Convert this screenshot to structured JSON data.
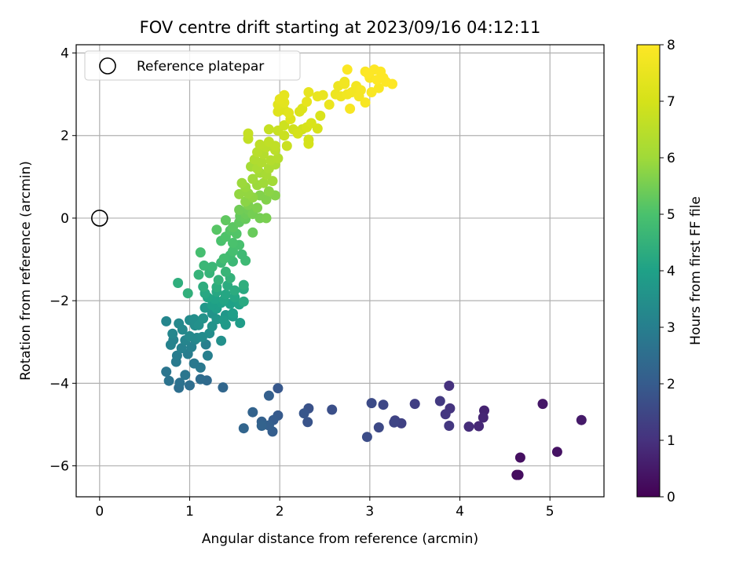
{
  "chart_data": {
    "type": "scatter",
    "title": "FOV centre drift starting at 2023/09/16 04:12:11",
    "xlabel": "Angular distance from reference (arcmin)",
    "ylabel": "Rotation from reference (arcmin)",
    "xlim": [
      -0.26,
      5.6
    ],
    "ylim": [
      -6.75,
      4.2
    ],
    "x_ticks": [
      0,
      1,
      2,
      3,
      4,
      5
    ],
    "y_ticks": [
      -6,
      -4,
      -2,
      0,
      2,
      4
    ],
    "grid": true,
    "legend": {
      "placement": "top-left",
      "entries": [
        "Reference platepar"
      ]
    },
    "reference_point": {
      "x": 0,
      "y": 0
    },
    "colorbar": {
      "label": "Hours from first FF file",
      "range": [
        0,
        8
      ],
      "ticks": [
        0,
        1,
        2,
        3,
        4,
        5,
        6,
        7,
        8
      ],
      "colormap": "viridis"
    },
    "series": [
      {
        "points": [
          [
            4.63,
            -6.22,
            0.2
          ],
          [
            4.65,
            -6.22,
            0.25
          ],
          [
            4.67,
            -5.8,
            0.3
          ],
          [
            5.08,
            -5.66,
            0.35
          ],
          [
            4.92,
            -4.5,
            0.45
          ],
          [
            5.35,
            -4.89,
            0.5
          ],
          [
            4.27,
            -4.66,
            0.7
          ],
          [
            4.26,
            -4.83,
            0.75
          ],
          [
            4.21,
            -5.04,
            0.8
          ],
          [
            4.1,
            -5.05,
            0.9
          ],
          [
            3.88,
            -4.06,
            1.0
          ],
          [
            3.89,
            -4.61,
            1.05
          ],
          [
            3.84,
            -4.75,
            1.1
          ],
          [
            3.88,
            -5.03,
            1.15
          ],
          [
            3.78,
            -4.43,
            1.2
          ],
          [
            3.5,
            -4.5,
            1.3
          ],
          [
            3.35,
            -4.97,
            1.35
          ],
          [
            3.28,
            -4.9,
            1.4
          ],
          [
            3.27,
            -4.95,
            1.45
          ],
          [
            3.15,
            -4.52,
            1.5
          ],
          [
            3.1,
            -5.07,
            1.55
          ],
          [
            3.02,
            -4.48,
            1.6
          ],
          [
            2.97,
            -5.3,
            1.65
          ],
          [
            2.58,
            -4.64,
            1.7
          ],
          [
            2.32,
            -4.61,
            1.75
          ],
          [
            2.31,
            -4.94,
            1.8
          ],
          [
            2.27,
            -4.73,
            1.85
          ],
          [
            1.98,
            -4.12,
            1.9
          ],
          [
            1.98,
            -4.78,
            1.95
          ],
          [
            1.93,
            -4.89,
            2.0
          ],
          [
            1.92,
            -5.17,
            2.05
          ],
          [
            1.88,
            -5.02,
            2.1
          ],
          [
            1.88,
            -4.3,
            2.1
          ],
          [
            1.8,
            -4.93,
            2.15
          ],
          [
            1.8,
            -5.03,
            2.2
          ],
          [
            1.7,
            -4.7,
            2.2
          ],
          [
            1.6,
            -5.09,
            2.25
          ],
          [
            1.37,
            -4.1,
            2.3
          ],
          [
            1.19,
            -3.93,
            2.4
          ],
          [
            1.12,
            -3.9,
            2.45
          ],
          [
            1.0,
            -4.05,
            2.5
          ],
          [
            0.88,
            -4.11,
            2.55
          ],
          [
            0.89,
            -3.99,
            2.6
          ],
          [
            0.77,
            -3.94,
            2.65
          ],
          [
            0.74,
            -3.72,
            2.7
          ],
          [
            0.95,
            -3.8,
            2.75
          ],
          [
            1.12,
            -3.62,
            2.8
          ],
          [
            1.05,
            -3.52,
            2.8
          ],
          [
            0.85,
            -3.48,
            2.85
          ],
          [
            0.86,
            -3.33,
            2.9
          ],
          [
            0.98,
            -3.29,
            2.95
          ],
          [
            1.2,
            -3.33,
            3.0
          ],
          [
            1.18,
            -3.06,
            3.0
          ],
          [
            1.02,
            -3.12,
            3.05
          ],
          [
            0.91,
            -3.15,
            3.05
          ],
          [
            0.79,
            -3.07,
            3.1
          ],
          [
            0.82,
            -2.95,
            3.1
          ],
          [
            0.95,
            -2.96,
            3.15
          ],
          [
            1.06,
            -2.94,
            3.15
          ],
          [
            0.81,
            -2.8,
            3.2
          ],
          [
            0.74,
            -2.5,
            3.2
          ],
          [
            0.88,
            -2.55,
            3.25
          ],
          [
            0.92,
            -2.7,
            3.25
          ],
          [
            1.0,
            -2.86,
            3.3
          ],
          [
            1.08,
            -2.9,
            3.3
          ],
          [
            1.14,
            -2.88,
            3.35
          ],
          [
            1.0,
            -2.47,
            3.35
          ],
          [
            1.06,
            -2.6,
            3.4
          ],
          [
            1.22,
            -2.79,
            3.4
          ],
          [
            1.05,
            -2.45,
            3.45
          ],
          [
            1.1,
            -2.59,
            3.5
          ],
          [
            1.35,
            -2.97,
            3.5
          ],
          [
            1.15,
            -2.43,
            3.55
          ],
          [
            1.25,
            -2.31,
            3.6
          ],
          [
            1.25,
            -2.62,
            3.6
          ],
          [
            1.3,
            -2.45,
            3.65
          ],
          [
            1.17,
            -2.17,
            3.7
          ],
          [
            1.4,
            -2.35,
            3.7
          ],
          [
            1.4,
            -2.58,
            3.75
          ],
          [
            1.38,
            -2.48,
            3.8
          ],
          [
            1.48,
            -2.38,
            3.8
          ],
          [
            1.56,
            -2.54,
            3.85
          ],
          [
            1.48,
            -2.31,
            3.9
          ],
          [
            1.3,
            -2.19,
            3.9
          ],
          [
            1.25,
            -2.11,
            3.95
          ],
          [
            1.35,
            -2.05,
            4.0
          ],
          [
            1.45,
            -2.08,
            4.0
          ],
          [
            1.55,
            -2.09,
            4.05
          ],
          [
            1.28,
            -1.96,
            4.05
          ],
          [
            1.38,
            -1.98,
            4.1
          ],
          [
            1.2,
            -1.92,
            4.1
          ],
          [
            1.4,
            -1.85,
            4.15
          ],
          [
            1.5,
            -1.92,
            4.15
          ],
          [
            1.17,
            -1.82,
            4.2
          ],
          [
            1.3,
            -1.78,
            4.2
          ],
          [
            1.6,
            -2.02,
            4.25
          ],
          [
            1.6,
            -1.72,
            4.25
          ],
          [
            1.5,
            -1.75,
            4.3
          ],
          [
            1.42,
            -1.63,
            4.3
          ],
          [
            1.3,
            -1.67,
            4.35
          ],
          [
            1.15,
            -1.66,
            4.35
          ],
          [
            1.6,
            -1.62,
            4.4
          ],
          [
            0.87,
            -1.57,
            4.4
          ],
          [
            0.98,
            -1.82,
            4.45
          ],
          [
            1.32,
            -1.5,
            4.5
          ],
          [
            1.45,
            -1.45,
            4.5
          ],
          [
            1.22,
            -1.33,
            4.55
          ],
          [
            1.1,
            -1.37,
            4.55
          ],
          [
            1.4,
            -1.3,
            4.6
          ],
          [
            1.25,
            -1.18,
            4.65
          ],
          [
            1.16,
            -1.15,
            4.65
          ],
          [
            1.35,
            -1.08,
            4.7
          ],
          [
            1.48,
            -1.05,
            4.7
          ],
          [
            1.62,
            -1.03,
            4.75
          ],
          [
            1.58,
            -0.88,
            4.75
          ],
          [
            1.45,
            -0.9,
            4.8
          ],
          [
            1.38,
            -0.98,
            4.85
          ],
          [
            1.12,
            -0.83,
            4.9
          ],
          [
            1.48,
            -0.8,
            4.9
          ],
          [
            1.55,
            -0.65,
            4.95
          ],
          [
            1.48,
            -0.6,
            5.0
          ],
          [
            1.35,
            -0.55,
            5.0
          ],
          [
            1.4,
            -0.45,
            5.05
          ],
          [
            1.52,
            -0.38,
            5.1
          ],
          [
            1.45,
            -0.3,
            5.1
          ],
          [
            1.3,
            -0.28,
            5.15
          ],
          [
            1.48,
            -0.22,
            5.2
          ],
          [
            1.55,
            -0.1,
            5.25
          ],
          [
            1.4,
            -0.05,
            5.25
          ],
          [
            1.56,
            0.05,
            5.3
          ],
          [
            1.62,
            -0.02,
            5.35
          ],
          [
            1.7,
            -0.35,
            5.35
          ],
          [
            1.62,
            0.1,
            5.4
          ],
          [
            1.55,
            0.2,
            5.45
          ],
          [
            1.65,
            0.2,
            5.45
          ],
          [
            1.7,
            0.1,
            5.5
          ],
          [
            1.78,
            0.0,
            5.5
          ],
          [
            1.85,
            0.0,
            5.55
          ],
          [
            1.65,
            0.32,
            5.6
          ],
          [
            1.75,
            0.25,
            5.6
          ],
          [
            1.85,
            0.45,
            5.65
          ],
          [
            1.78,
            0.55,
            5.65
          ],
          [
            1.95,
            0.55,
            5.7
          ],
          [
            1.88,
            0.65,
            5.75
          ],
          [
            1.62,
            0.4,
            5.75
          ],
          [
            1.7,
            0.5,
            5.8
          ],
          [
            1.65,
            0.6,
            5.85
          ],
          [
            1.55,
            0.58,
            5.85
          ],
          [
            1.62,
            0.75,
            5.9
          ],
          [
            1.58,
            0.85,
            5.95
          ],
          [
            1.75,
            0.8,
            5.95
          ],
          [
            1.82,
            0.85,
            6.0
          ],
          [
            1.7,
            0.95,
            6.0
          ],
          [
            1.92,
            0.9,
            6.05
          ],
          [
            1.78,
            1.1,
            6.1
          ],
          [
            1.68,
            1.25,
            6.1
          ],
          [
            1.85,
            1.05,
            6.15
          ],
          [
            1.75,
            1.2,
            6.2
          ],
          [
            1.88,
            1.2,
            6.2
          ],
          [
            1.95,
            1.3,
            6.25
          ],
          [
            1.8,
            1.35,
            6.3
          ],
          [
            1.72,
            1.42,
            6.3
          ],
          [
            1.9,
            1.4,
            6.35
          ],
          [
            1.98,
            1.45,
            6.4
          ],
          [
            1.82,
            1.55,
            6.4
          ],
          [
            1.75,
            1.6,
            6.45
          ],
          [
            1.95,
            1.65,
            6.5
          ],
          [
            1.85,
            1.72,
            6.5
          ],
          [
            1.78,
            1.78,
            6.55
          ],
          [
            1.88,
            1.85,
            6.6
          ],
          [
            1.95,
            1.75,
            6.6
          ],
          [
            1.65,
            1.92,
            6.65
          ],
          [
            1.65,
            2.05,
            6.7
          ],
          [
            1.88,
            2.15,
            6.7
          ],
          [
            1.98,
            2.12,
            6.75
          ],
          [
            2.08,
            1.75,
            6.8
          ],
          [
            2.05,
            2.0,
            6.8
          ],
          [
            2.05,
            2.25,
            6.85
          ],
          [
            2.15,
            2.15,
            6.9
          ],
          [
            2.25,
            2.15,
            6.9
          ],
          [
            2.32,
            1.9,
            6.95
          ],
          [
            2.32,
            1.8,
            7.0
          ],
          [
            2.2,
            2.05,
            7.0
          ],
          [
            2.3,
            2.2,
            7.05
          ],
          [
            2.42,
            2.17,
            7.05
          ],
          [
            2.35,
            2.3,
            7.1
          ],
          [
            2.45,
            2.48,
            7.1
          ],
          [
            2.22,
            2.58,
            7.15
          ],
          [
            2.25,
            2.65,
            7.2
          ],
          [
            2.12,
            2.4,
            7.2
          ],
          [
            1.98,
            2.58,
            7.25
          ],
          [
            2.05,
            2.62,
            7.25
          ],
          [
            2.1,
            2.55,
            7.3
          ],
          [
            1.98,
            2.75,
            7.3
          ],
          [
            2.05,
            2.8,
            7.35
          ],
          [
            2.0,
            2.88,
            7.4
          ],
          [
            2.05,
            2.98,
            7.4
          ],
          [
            2.3,
            2.82,
            7.45
          ],
          [
            2.32,
            3.05,
            7.45
          ],
          [
            2.42,
            2.95,
            7.5
          ],
          [
            2.48,
            2.98,
            7.5
          ],
          [
            2.55,
            2.75,
            7.55
          ],
          [
            2.62,
            3.0,
            7.6
          ],
          [
            2.65,
            3.2,
            7.6
          ],
          [
            2.72,
            3.3,
            7.65
          ],
          [
            2.68,
            2.95,
            7.65
          ],
          [
            2.75,
            3.0,
            7.7
          ],
          [
            2.72,
            3.25,
            7.7
          ],
          [
            2.8,
            3.05,
            7.75
          ],
          [
            2.85,
            3.2,
            7.75
          ],
          [
            2.9,
            3.1,
            7.8
          ],
          [
            2.88,
            2.95,
            7.8
          ],
          [
            2.78,
            2.65,
            7.85
          ],
          [
            2.95,
            2.8,
            7.85
          ],
          [
            3.02,
            3.05,
            7.9
          ],
          [
            3.1,
            3.15,
            7.9
          ],
          [
            2.75,
            3.6,
            7.95
          ],
          [
            2.95,
            3.55,
            7.95
          ],
          [
            3.0,
            3.4,
            7.95
          ],
          [
            3.08,
            3.35,
            8.0
          ],
          [
            3.15,
            3.4,
            8.0
          ],
          [
            3.05,
            3.6,
            8.0
          ],
          [
            3.18,
            3.3,
            8.0
          ],
          [
            3.25,
            3.25,
            8.0
          ],
          [
            2.98,
            3.5,
            8.0
          ],
          [
            3.12,
            3.55,
            8.0
          ]
        ]
      }
    ]
  }
}
